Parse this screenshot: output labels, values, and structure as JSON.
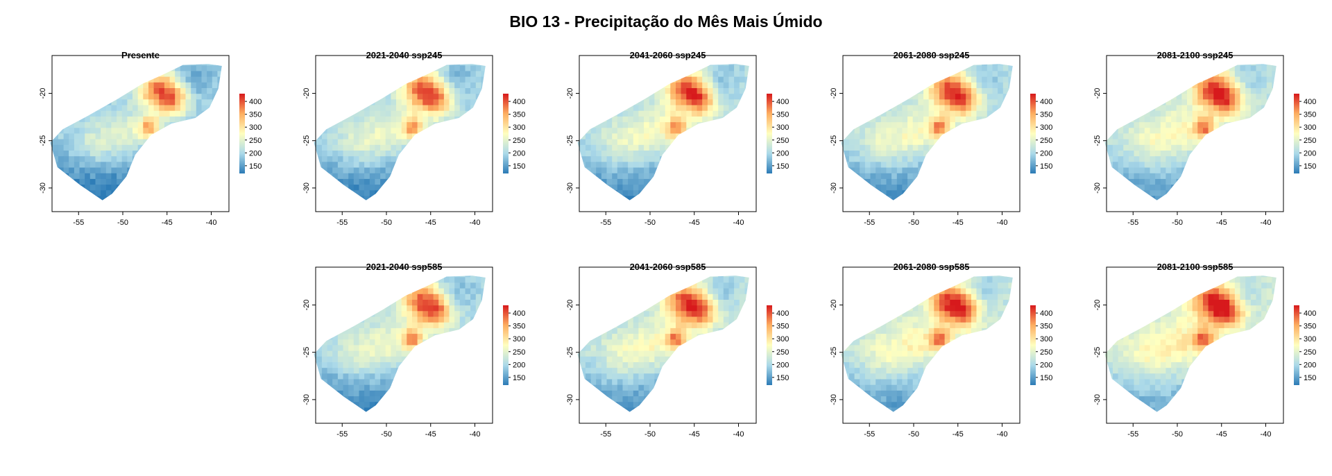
{
  "title": "BIO 13 - Precipitação do Mês Mais Úmido",
  "chart_data": {
    "type": "heatmap",
    "x_ticks": [
      -55,
      -50,
      -45,
      -40
    ],
    "y_ticks": [
      -20,
      -25,
      -30
    ],
    "xlim": [
      -58,
      -38
    ],
    "ylim": [
      -32.5,
      -16
    ],
    "colorbar": {
      "ticks": [
        150,
        200,
        250,
        300,
        350,
        400
      ],
      "range": [
        120,
        430
      ],
      "colors": [
        "#2c7bb6",
        "#abd9e9",
        "#ffffbf",
        "#fdae61",
        "#d7191c"
      ]
    },
    "panels": [
      {
        "title": "Presente",
        "intensity": 0.0
      },
      {
        "title": "2021-2040 ssp245",
        "intensity": 0.15
      },
      {
        "title": "2041-2060 ssp245",
        "intensity": 0.25
      },
      {
        "title": "2061-2080 ssp245",
        "intensity": 0.3
      },
      {
        "title": "2081-2100 ssp245",
        "intensity": 0.4
      },
      {
        "title": "2021-2040 ssp585",
        "intensity": 0.2
      },
      {
        "title": "2041-2060 ssp585",
        "intensity": 0.35
      },
      {
        "title": "2061-2080 ssp585",
        "intensity": 0.45
      },
      {
        "title": "2081-2100 ssp585",
        "intensity": 0.6
      }
    ]
  }
}
